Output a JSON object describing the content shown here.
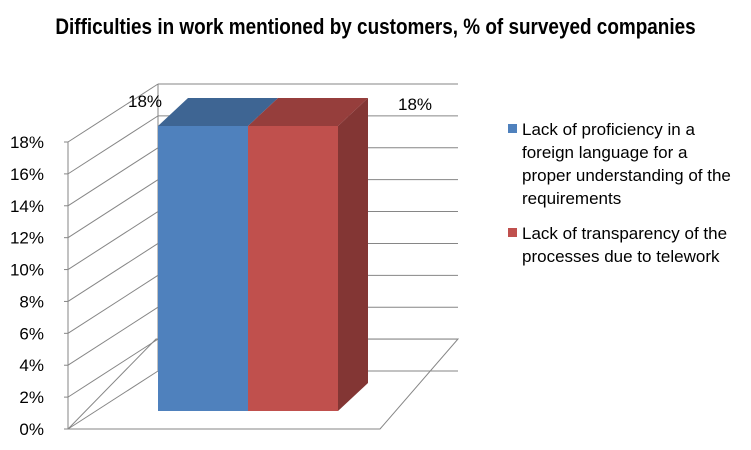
{
  "chart_data": {
    "type": "bar",
    "title": "Difficulties in work mentioned by customers, % of surveyed companies",
    "categories": [
      ""
    ],
    "series": [
      {
        "name": "Lack of proficiency in a foreign language for a proper understanding of the requirements",
        "values": [
          18
        ],
        "color": "#4F81BD",
        "label": "18%"
      },
      {
        "name": "Lack of transparency of the processes due to telework",
        "values": [
          18
        ],
        "color": "#C0504D",
        "label": "18%"
      }
    ],
    "ylim": [
      0,
      18
    ],
    "yticks": [
      "0%",
      "2%",
      "4%",
      "6%",
      "8%",
      "10%",
      "12%",
      "14%",
      "16%",
      "18%"
    ],
    "grid": true,
    "legend": "right",
    "three_d": true
  }
}
